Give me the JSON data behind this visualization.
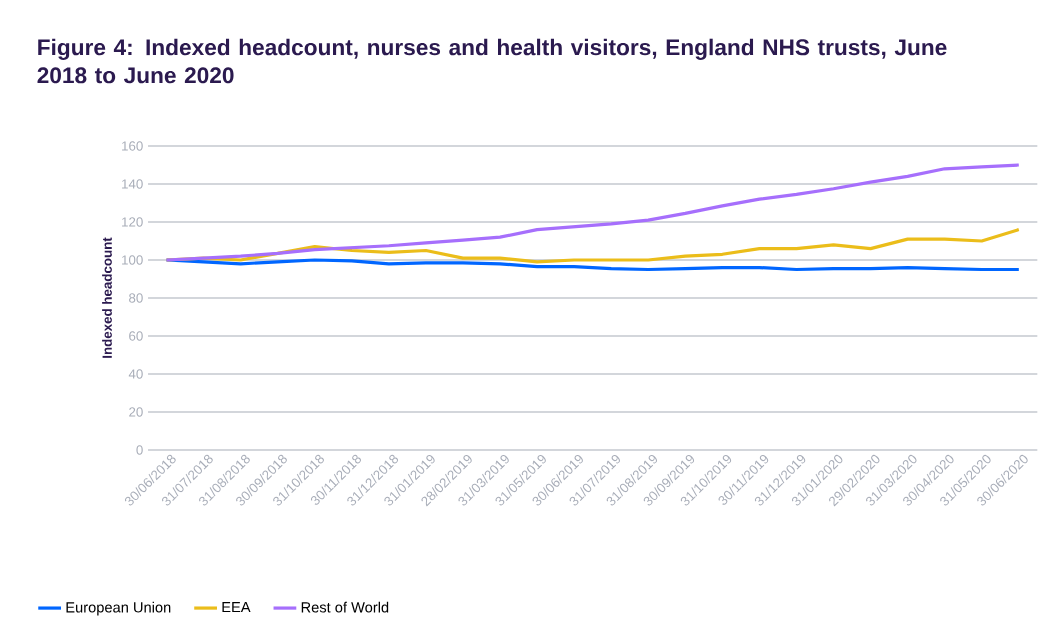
{
  "chart_data": {
    "type": "line",
    "title": "Figure 4: Indexed headcount, nurses and health visitors, England NHS trusts, June 2018 to June 2020",
    "ylabel": "Indexed headcount",
    "categories": [
      "30/06/2018",
      "31/07/2018",
      "31/08/2018",
      "30/09/2018",
      "31/10/2018",
      "30/11/2018",
      "31/12/2018",
      "31/01/2019",
      "28/02/2019",
      "31/03/2019",
      "31/05/2019",
      "30/06/2019",
      "31/07/2019",
      "31/08/2019",
      "30/09/2019",
      "31/10/2019",
      "30/11/2019",
      "31/12/2019",
      "31/01/2020",
      "29/02/2020",
      "31/03/2020",
      "30/04/2020",
      "31/05/2020",
      "30/06/2020"
    ],
    "series": [
      {
        "name": "European Union",
        "color": "#0066ff",
        "values": [
          100,
          99,
          98,
          99,
          100,
          99.5,
          98,
          98.5,
          98.5,
          98,
          96.5,
          96.5,
          95.5,
          95,
          95.5,
          96,
          96,
          95,
          95.5,
          95.5,
          96,
          95.5,
          95,
          95
        ]
      },
      {
        "name": "EEA",
        "color": "#ebbd1a",
        "values": [
          100,
          101,
          100,
          103.5,
          107,
          105,
          104,
          105,
          101,
          101,
          99,
          100,
          100,
          100,
          102,
          103,
          106,
          106,
          108,
          106,
          111,
          111,
          110,
          116
        ]
      },
      {
        "name": "Rest of World",
        "color": "#a66ffc",
        "values": [
          100,
          101,
          102,
          103.5,
          105.5,
          106.5,
          107.5,
          109,
          110.5,
          112,
          116,
          117.5,
          119,
          121,
          124.5,
          128.5,
          132,
          134.5,
          137.5,
          141,
          144,
          148,
          149,
          150
        ]
      }
    ],
    "ylim": [
      0,
      160
    ],
    "yticks": [
      0,
      20,
      40,
      60,
      80,
      100,
      120,
      140,
      160
    ],
    "grid": "y",
    "legend": "bottom left",
    "marker": "none",
    "line_style": "solid"
  }
}
